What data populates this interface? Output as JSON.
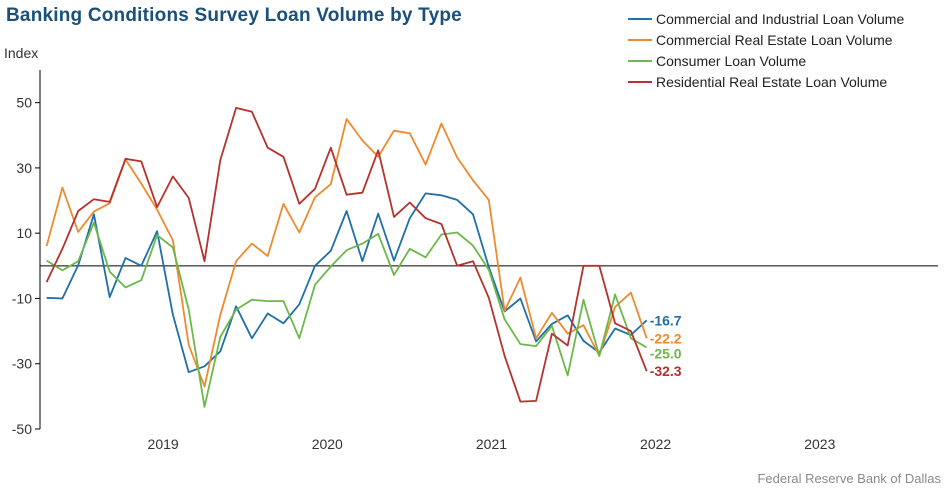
{
  "title": "Banking Conditions Survey Loan Volume by Type",
  "source": "Federal Reserve Bank of Dallas",
  "chart_data": {
    "type": "line",
    "ylabel": "Index",
    "ylim": [
      -50,
      60
    ],
    "y_ticks": [
      50,
      30,
      10,
      -10,
      -30,
      -50
    ],
    "grid": false,
    "legend_position": "top-right",
    "zero_line": true,
    "x_ticks": [
      {
        "label": "2019",
        "x": 2019.25
      },
      {
        "label": "2020",
        "x": 2020.25
      },
      {
        "label": "2021",
        "x": 2021.25
      },
      {
        "label": "2022",
        "x": 2022.25
      },
      {
        "label": "2023",
        "x": 2023.25
      }
    ],
    "x_range": [
      2018.5,
      2023.97
    ],
    "x_start": 2018.54,
    "x_step": 0.0962,
    "series": [
      {
        "name": "Commercial and Industrial Loan Volume",
        "color": "#1f6fa8",
        "end_label": "-16.7",
        "values": [
          -9.8,
          -10.0,
          0.2,
          15.8,
          -9.6,
          2.4,
          0.0,
          10.6,
          -15.0,
          -32.6,
          -30.8,
          -26.2,
          -12.4,
          -22.2,
          -14.6,
          -17.6,
          -11.8,
          0.0,
          4.6,
          16.8,
          1.4,
          16.0,
          1.6,
          14.6,
          22.2,
          21.6,
          20.2,
          15.8,
          -0.4,
          -14.0,
          -10.0,
          -23.2,
          -17.8,
          -15.2,
          -23.0,
          -26.6,
          -19.2,
          -21.2,
          -16.7
        ]
      },
      {
        "name": "Commercial Real Estate Loan Volume",
        "color": "#ee8a2e",
        "end_label": "-22.2",
        "values": [
          6.0,
          24.0,
          10.4,
          16.6,
          19.2,
          32.6,
          25.2,
          17.2,
          7.8,
          -24.2,
          -37.0,
          -15.0,
          1.4,
          6.8,
          3.0,
          19.0,
          10.2,
          21.0,
          25.0,
          45.0,
          38.4,
          33.4,
          41.4,
          40.6,
          31.0,
          43.6,
          33.2,
          26.2,
          20.2,
          -13.8,
          -3.6,
          -22.2,
          -14.4,
          -20.8,
          -18.2,
          -27.6,
          -12.6,
          -8.2,
          -22.2
        ]
      },
      {
        "name": "Consumer Loan Volume",
        "color": "#6cb84a",
        "end_label": "-25.0",
        "values": [
          1.6,
          -1.4,
          1.4,
          13.2,
          -1.8,
          -6.6,
          -4.4,
          9.4,
          5.6,
          -13.4,
          -43.2,
          -21.8,
          -13.4,
          -10.4,
          -10.8,
          -10.8,
          -22.2,
          -5.8,
          -0.2,
          4.8,
          6.8,
          9.8,
          -2.8,
          5.2,
          2.6,
          9.6,
          10.2,
          6.2,
          -1.2,
          -16.4,
          -24.0,
          -24.6,
          -18.4,
          -33.6,
          -10.4,
          -27.6,
          -8.8,
          -22.2,
          -25.0
        ]
      },
      {
        "name": "Residential Real Estate Loan Volume",
        "color": "#b5322d",
        "end_label": "-32.3",
        "values": [
          -5.0,
          5.2,
          16.8,
          20.4,
          19.6,
          32.8,
          32.0,
          18.0,
          27.4,
          20.8,
          1.4,
          32.4,
          48.4,
          47.2,
          36.2,
          33.4,
          19.0,
          23.6,
          36.2,
          21.8,
          22.4,
          35.4,
          15.0,
          19.4,
          14.6,
          12.8,
          0.0,
          1.4,
          -9.8,
          -27.6,
          -41.6,
          -41.4,
          -20.8,
          -24.4,
          0.0,
          0.0,
          -17.6,
          -20.0,
          -32.3
        ]
      }
    ]
  }
}
